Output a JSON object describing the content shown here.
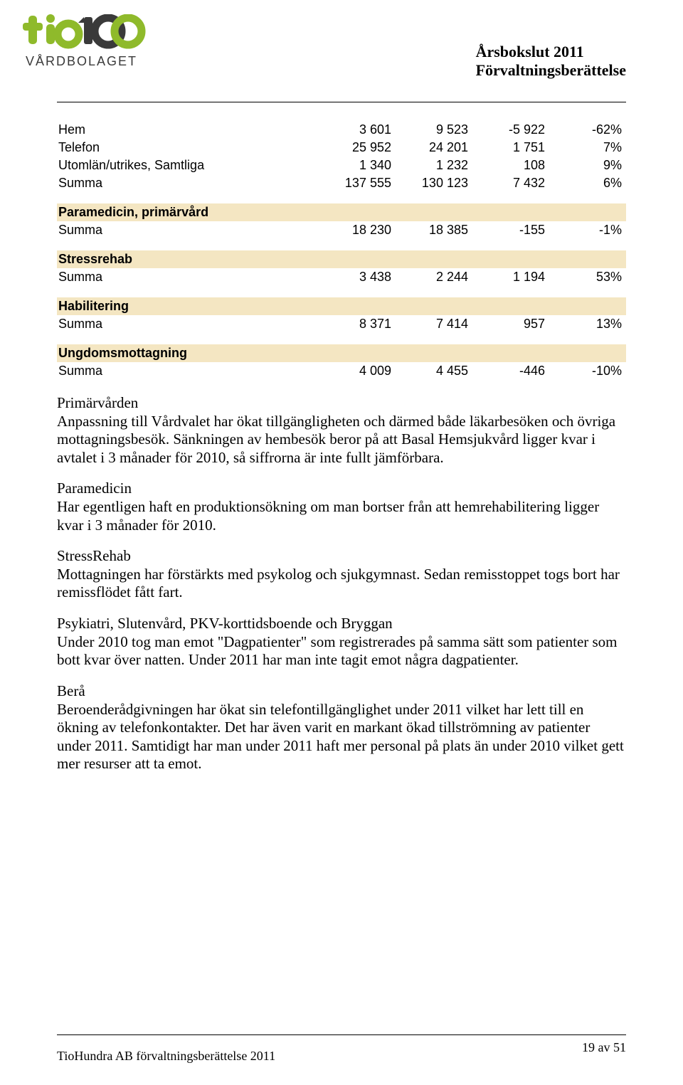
{
  "colors": {
    "section_bg": "#f4e6c2",
    "text": "#000000",
    "logo_green": "#8fba2b",
    "logo_dark": "#3a3a3a"
  },
  "header": {
    "line1": "Årsbokslut 2011",
    "line2": "Förvaltningsberättelse"
  },
  "logo": {
    "brand_primary": "tio",
    "brand_secondary": "100",
    "tagline": "VÅRDBOLAGET"
  },
  "tables": [
    {
      "section": null,
      "rows": [
        {
          "label": "Hem",
          "c1": "3 601",
          "c2": "9 523",
          "c3": "-5 922",
          "c4": "-62%"
        },
        {
          "label": "Telefon",
          "c1": "25 952",
          "c2": "24 201",
          "c3": "1 751",
          "c4": "7%"
        },
        {
          "label": "Utomlän/utrikes, Samtliga",
          "c1": "1 340",
          "c2": "1 232",
          "c3": "108",
          "c4": "9%"
        },
        {
          "label": "Summa",
          "c1": "137 555",
          "c2": "130 123",
          "c3": "7 432",
          "c4": "6%"
        }
      ]
    },
    {
      "section": "Paramedicin, primärvård",
      "rows": [
        {
          "label": "Summa",
          "c1": "18 230",
          "c2": "18 385",
          "c3": "-155",
          "c4": "-1%"
        }
      ]
    },
    {
      "section": "Stressrehab",
      "rows": [
        {
          "label": "Summa",
          "c1": "3 438",
          "c2": "2 244",
          "c3": "1 194",
          "c4": "53%"
        }
      ]
    },
    {
      "section": "Habilitering",
      "rows": [
        {
          "label": "Summa",
          "c1": "8 371",
          "c2": "7 414",
          "c3": "957",
          "c4": "13%"
        }
      ]
    },
    {
      "section": "Ungdomsmottagning",
      "rows": [
        {
          "label": "Summa",
          "c1": "4 009",
          "c2": "4 455",
          "c3": "-446",
          "c4": "-10%"
        }
      ]
    }
  ],
  "prose": [
    {
      "heading": "Primärvården",
      "body": "Anpassning till Vårdvalet har ökat tillgängligheten och därmed både läkarbesöken och övriga mottagningsbesök. Sänkningen av hembesök beror på att Basal Hemsjukvård ligger kvar i avtalet i 3 månader för 2010, så siffrorna är inte fullt jämförbara."
    },
    {
      "heading": "Paramedicin",
      "body": "Har egentligen haft en produktionsökning om man bortser från att hemrehabilitering ligger kvar i 3 månader för 2010."
    },
    {
      "heading": "StressRehab",
      "body": "Mottagningen har förstärkts med psykolog och sjukgymnast. Sedan remisstoppet togs bort har remissflödet fått fart."
    },
    {
      "heading": "Psykiatri, Slutenvård, PKV-korttidsboende och Bryggan",
      "body": "Under 2010 tog man emot \"Dagpatienter\" som registrerades på samma sätt som patienter som bott kvar över natten. Under 2011 har man inte tagit emot några dagpatienter."
    },
    {
      "heading": "Berå",
      "body": "Beroenderådgivningen har ökat sin telefontillgänglighet under 2011 vilket har lett till en ökning av telefonkontakter. Det har även varit en markant ökad tillströmning av patienter under 2011. Samtidigt har man under 2011 haft mer personal på plats än under 2010 vilket gett mer resurser att ta emot."
    }
  ],
  "footer": {
    "left": "TioHundra AB förvaltningsberättelse 2011",
    "right": "19 av 51"
  }
}
